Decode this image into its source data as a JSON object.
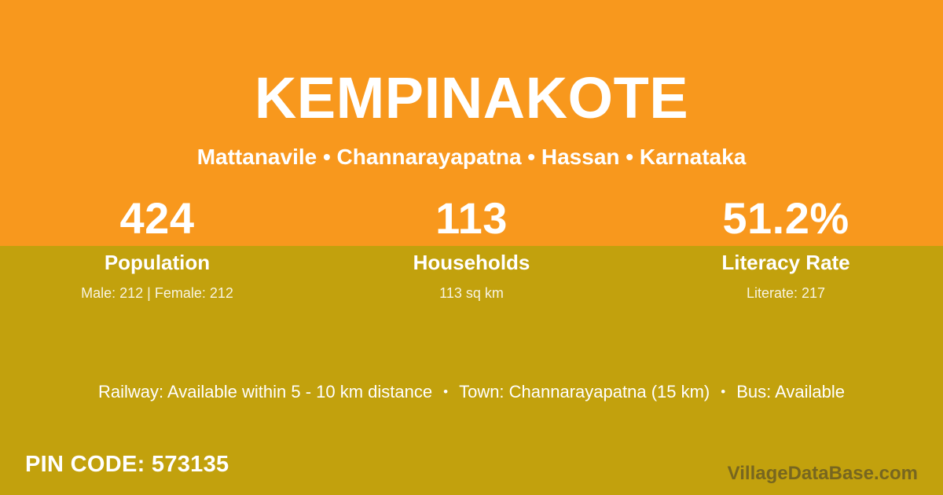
{
  "page": {
    "title": "KEMPINAKOTE",
    "subtitle": "Mattanavile • Channarayapatna • Hassan • Karnataka"
  },
  "stats": [
    {
      "value": "424",
      "label": "Population",
      "caption": "Male: 212 | Female: 212"
    },
    {
      "value": "113",
      "label": "Households",
      "caption": "113 sq km"
    },
    {
      "value": "51.2%",
      "label": "Literacy Rate",
      "caption": "Literate: 217"
    }
  ],
  "facts": {
    "separator": "•",
    "items": [
      "Railway: Available within 5 - 10 km distance",
      "Town: Channarayapatna (15 km)",
      "Bus: Available"
    ]
  },
  "footer": {
    "pin_code": "PIN CODE: 573135",
    "watermark": "VillageDataBase.com"
  },
  "colors": {
    "orange_band": "#f8981d",
    "gold_band": "#c2a10d",
    "text": "#ffffff",
    "watermark_text": "rgba(58,55,48,0.55)"
  }
}
